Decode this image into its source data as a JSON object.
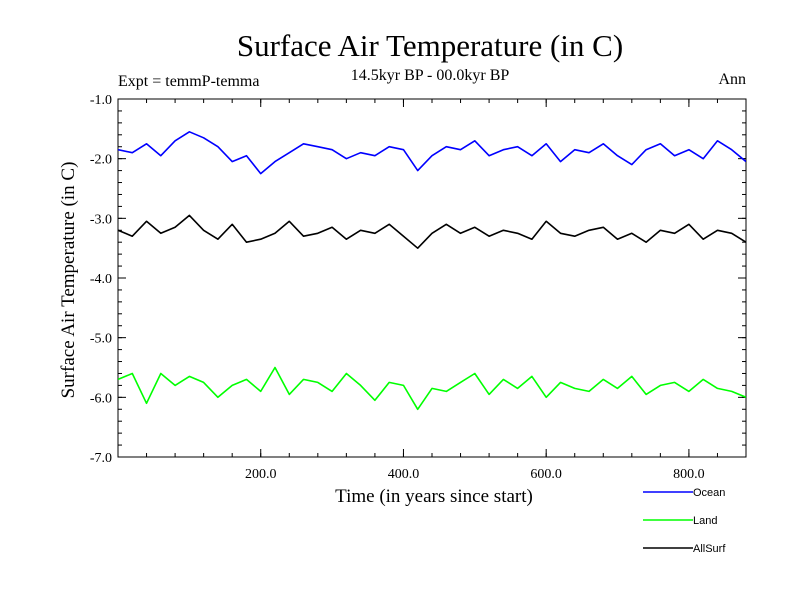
{
  "chart_data": {
    "type": "line",
    "title": "Surface Air Temperature (in C)",
    "subtitle": "14.5kyr BP - 00.0kyr BP",
    "expt_label": "Expt = temmP-temma",
    "season": "Ann",
    "xlabel": "Time (in years since start)",
    "ylabel": "Surface Air Temperature (in C)",
    "xlim": [
      0,
      880
    ],
    "ylim": [
      -7.0,
      -1.0
    ],
    "xticks": [
      200,
      400,
      600,
      800
    ],
    "xtick_labels": [
      "200.0",
      "400.0",
      "600.0",
      "800.0"
    ],
    "yticks": [
      -1,
      -2,
      -3,
      -4,
      -5,
      -6,
      -7
    ],
    "ytick_labels": [
      "-1.0",
      "-2.0",
      "-3.0",
      "-4.0",
      "-5.0",
      "-6.0",
      "-7.0"
    ],
    "grid": false,
    "legend_position": "bottom-right, outside plot",
    "x_step": 20,
    "series": [
      {
        "name": "Ocean",
        "color": "#0000ff",
        "values": [
          -1.85,
          -1.9,
          -1.75,
          -1.95,
          -1.7,
          -1.55,
          -1.65,
          -1.8,
          -2.05,
          -1.95,
          -2.25,
          -2.05,
          -1.9,
          -1.75,
          -1.8,
          -1.85,
          -2.0,
          -1.9,
          -1.95,
          -1.8,
          -1.85,
          -2.2,
          -1.95,
          -1.8,
          -1.85,
          -1.7,
          -1.95,
          -1.85,
          -1.8,
          -1.95,
          -1.75,
          -2.05,
          -1.85,
          -1.9,
          -1.75,
          -1.95,
          -2.1,
          -1.85,
          -1.75,
          -1.95,
          -1.85,
          -2.0,
          -1.7,
          -1.85,
          -2.05
        ]
      },
      {
        "name": "Land",
        "color": "#00ff00",
        "values": [
          -5.7,
          -5.6,
          -6.1,
          -5.6,
          -5.8,
          -5.65,
          -5.75,
          -6.0,
          -5.8,
          -5.7,
          -5.9,
          -5.5,
          -5.95,
          -5.7,
          -5.75,
          -5.9,
          -5.6,
          -5.8,
          -6.05,
          -5.75,
          -5.8,
          -6.2,
          -5.85,
          -5.9,
          -5.75,
          -5.6,
          -5.95,
          -5.7,
          -5.85,
          -5.65,
          -6.0,
          -5.75,
          -5.85,
          -5.9,
          -5.7,
          -5.85,
          -5.65,
          -5.95,
          -5.8,
          -5.75,
          -5.9,
          -5.7,
          -5.85,
          -5.9,
          -6.0
        ]
      },
      {
        "name": "AllSurf",
        "color": "#000000",
        "values": [
          -3.2,
          -3.3,
          -3.05,
          -3.25,
          -3.15,
          -2.95,
          -3.2,
          -3.35,
          -3.1,
          -3.4,
          -3.35,
          -3.25,
          -3.05,
          -3.3,
          -3.25,
          -3.15,
          -3.35,
          -3.2,
          -3.25,
          -3.1,
          -3.3,
          -3.5,
          -3.25,
          -3.1,
          -3.25,
          -3.15,
          -3.3,
          -3.2,
          -3.25,
          -3.35,
          -3.05,
          -3.25,
          -3.3,
          -3.2,
          -3.15,
          -3.35,
          -3.25,
          -3.4,
          -3.2,
          -3.25,
          -3.1,
          -3.35,
          -3.2,
          -3.25,
          -3.4
        ]
      }
    ]
  }
}
